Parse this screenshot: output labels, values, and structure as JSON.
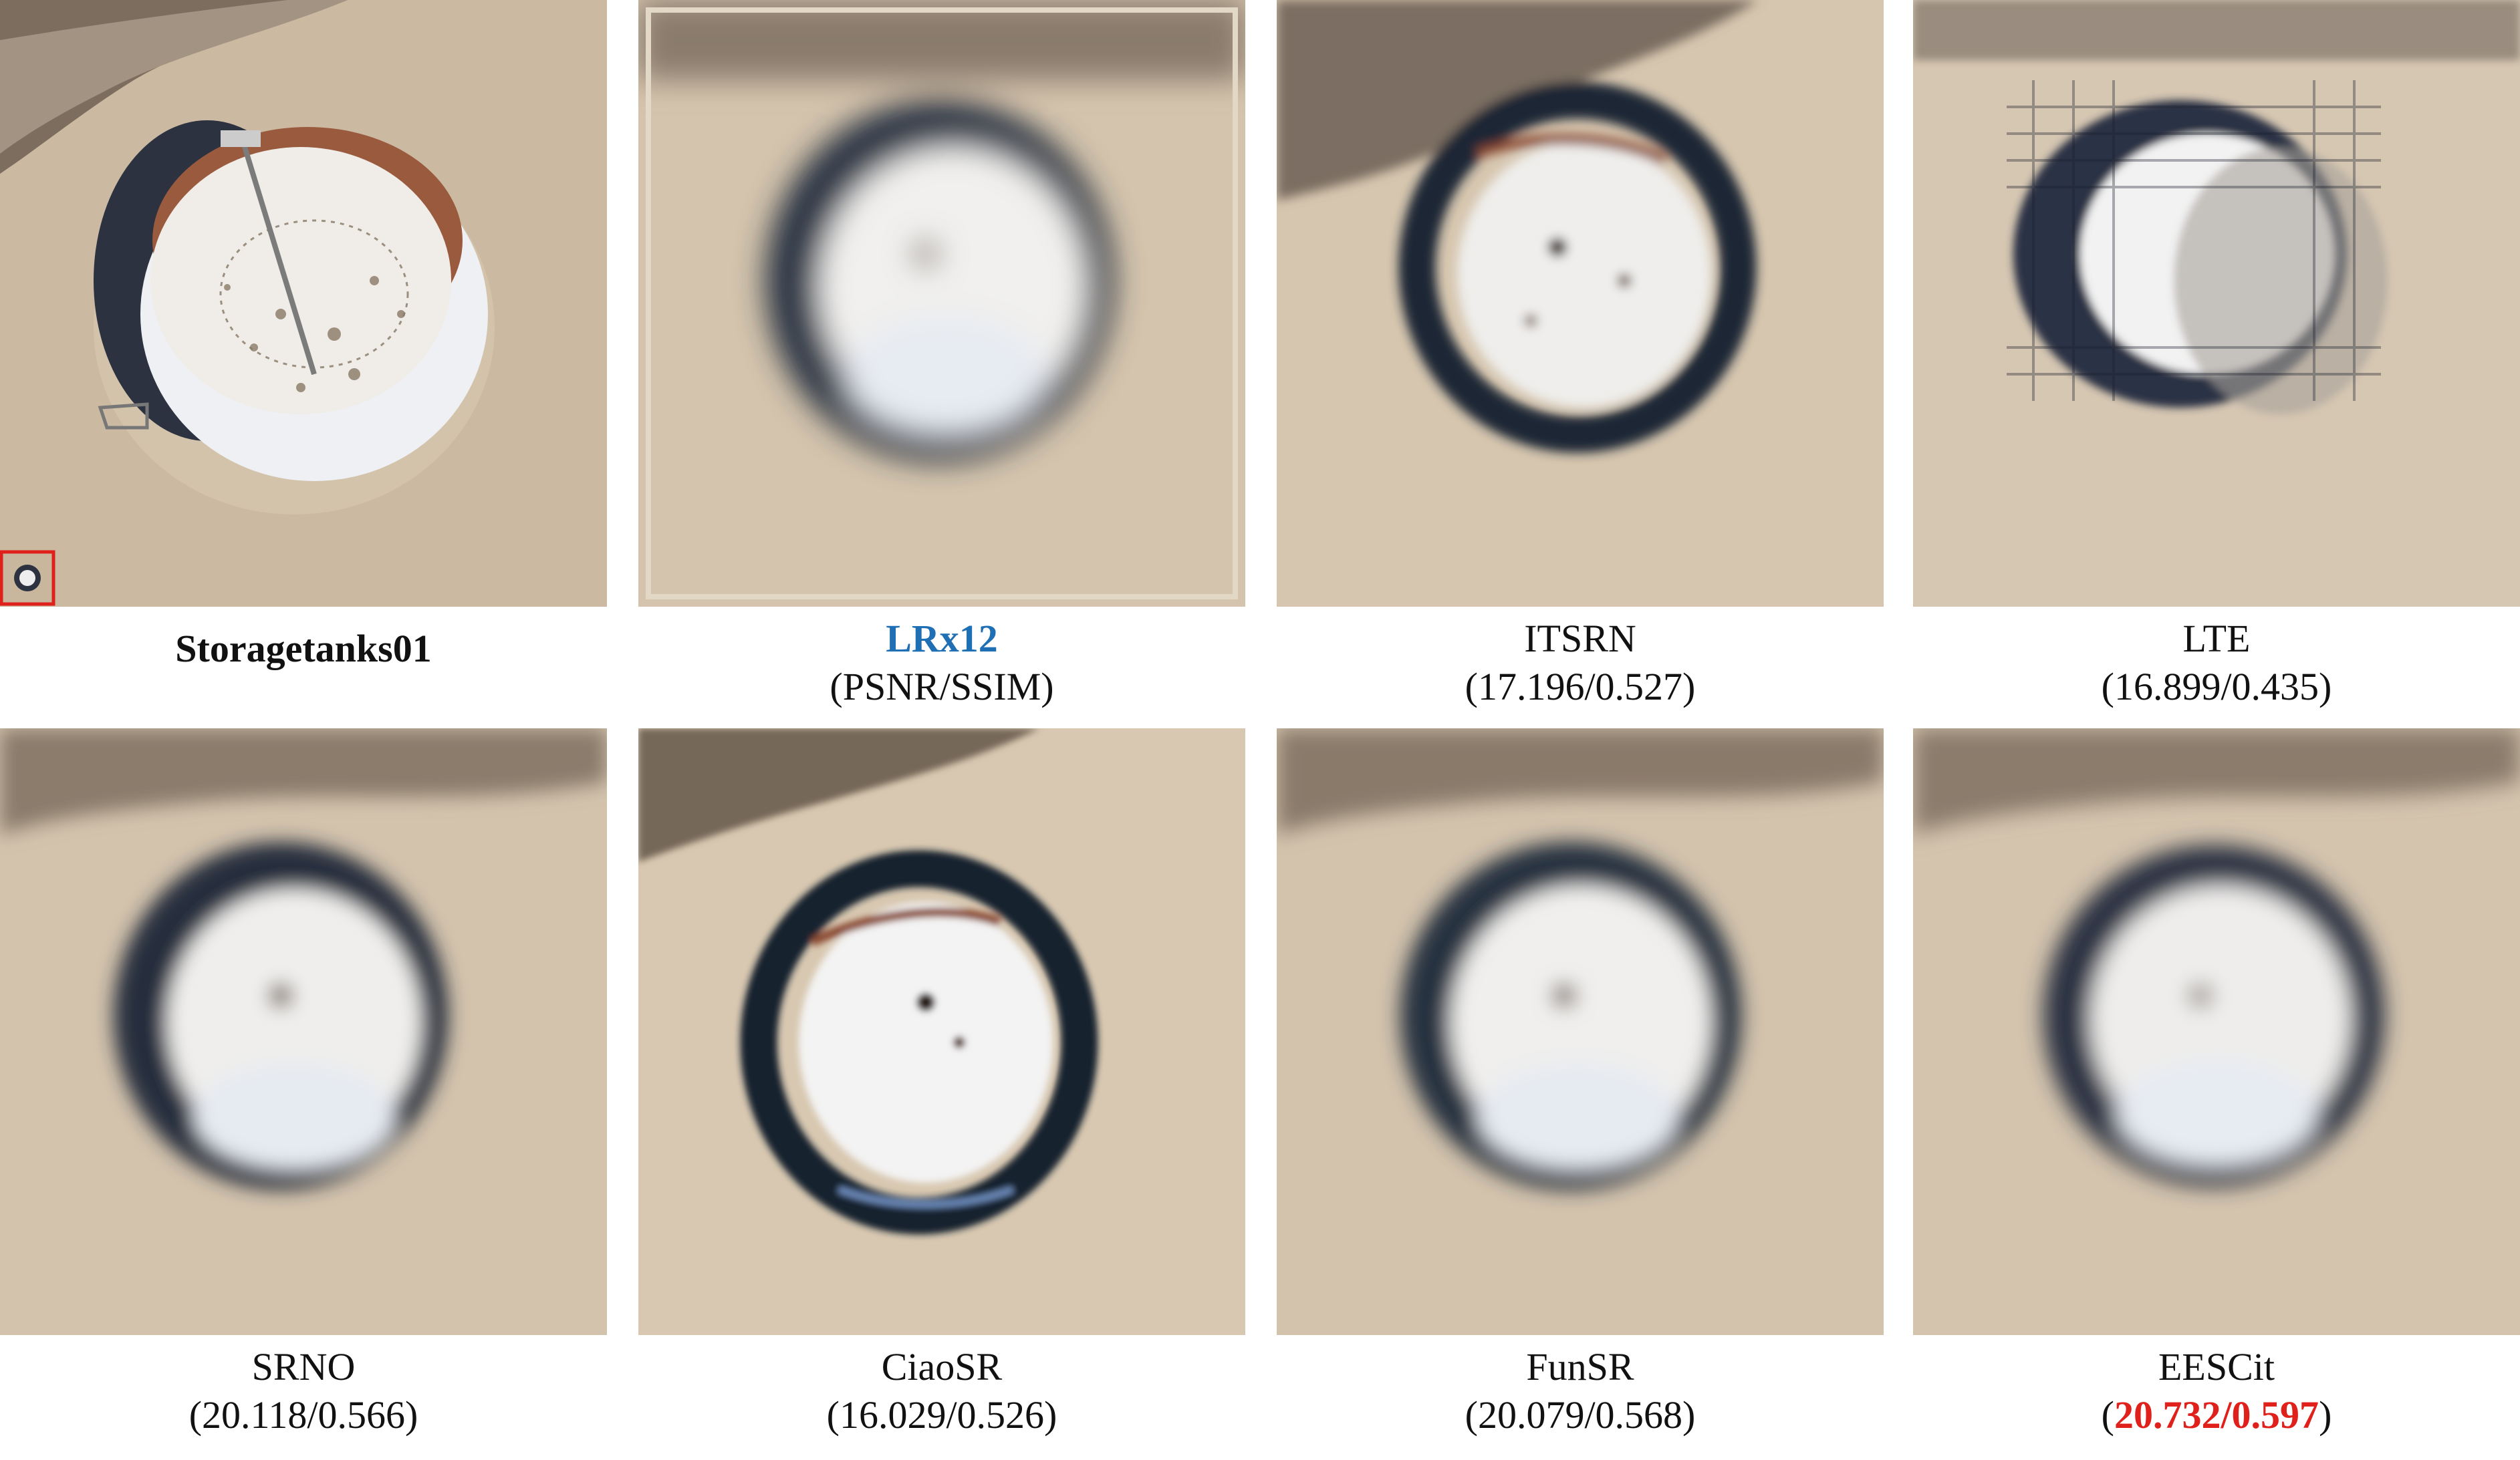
{
  "panels": [
    {
      "name": "Storagetanks01",
      "metrics": ""
    },
    {
      "name": "LRx12",
      "metrics": "(PSNR/SSIM)"
    },
    {
      "name": "ITSRN",
      "metrics": "(17.196/0.527)"
    },
    {
      "name": "LTE",
      "metrics": "(16.899/0.435)"
    },
    {
      "name": "SRNO",
      "metrics": "(20.118/0.566)"
    },
    {
      "name": "CiaoSR",
      "metrics": "(16.029/0.526)"
    },
    {
      "name": "FunSR",
      "metrics": "(20.079/0.568)"
    },
    {
      "name": "EESCit",
      "metrics_open": "(",
      "metrics_value": "20.732/0.597",
      "metrics_close": ")"
    }
  ],
  "colors": {
    "highlight_blue": "#1f6fb5",
    "highlight_red": "#e0201b",
    "inset_box": "#e0201b"
  }
}
